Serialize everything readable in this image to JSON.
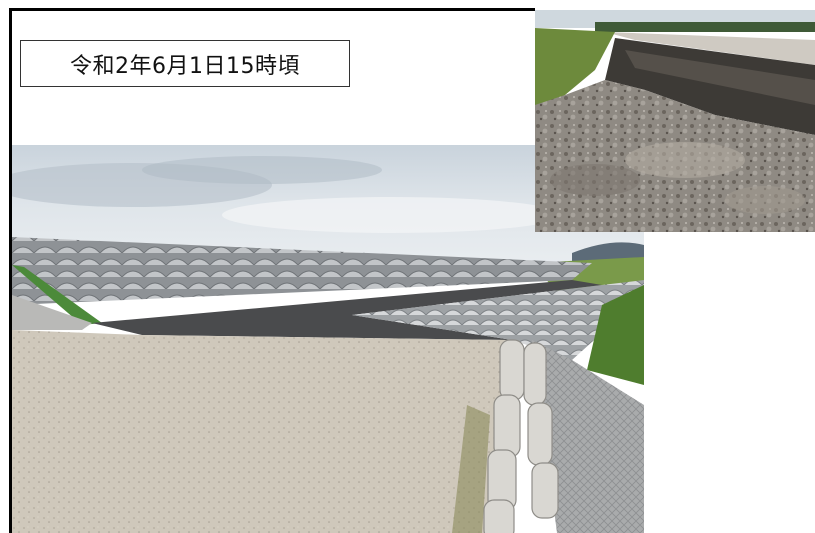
{
  "caption": {
    "date_label": "令和2年6月1日15時頃"
  },
  "photos": {
    "main": {
      "subject": "embankment-after-repair-photo"
    },
    "inset": {
      "subject": "embankment-erosion-damage-photo"
    }
  }
}
